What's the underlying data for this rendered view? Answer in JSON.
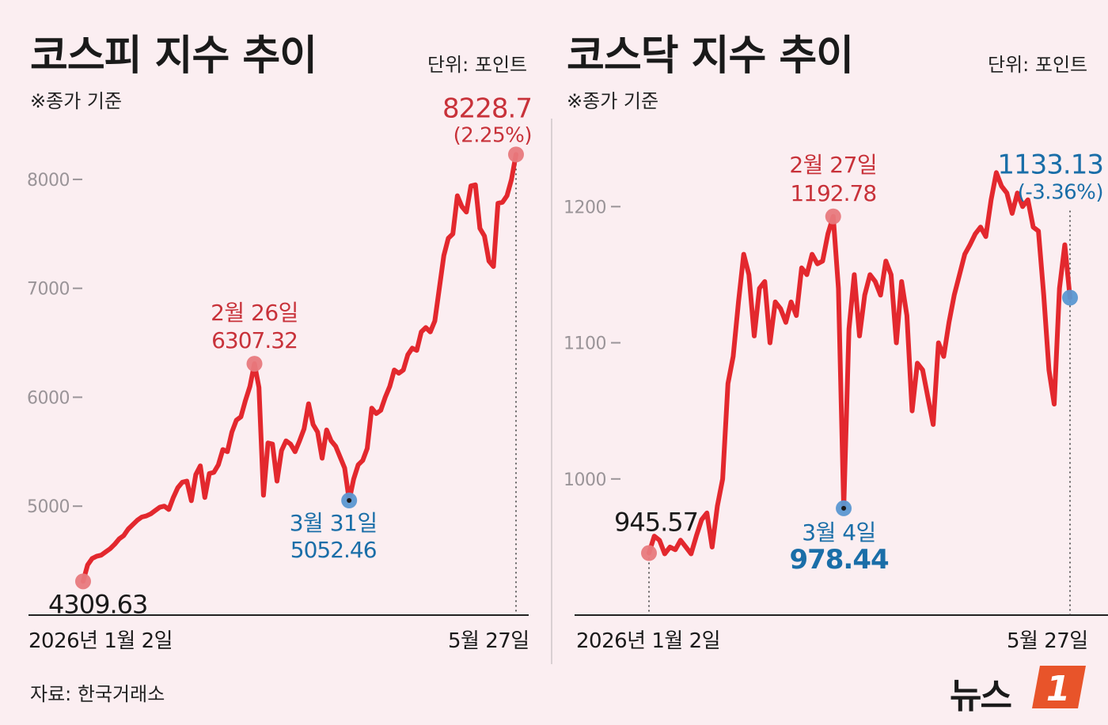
{
  "chart_data": [
    {
      "type": "line",
      "title": "코스피 지수 추이",
      "unit_label": "단위: 포인트",
      "note": "※종가 기준",
      "color": "#e3282e",
      "ylim": [
        4000,
        8500
      ],
      "yticks": [
        5000,
        6000,
        7000,
        8000
      ],
      "x_start_label": "2026년 1월 2일",
      "x_end_label": "5월 27일",
      "values": [
        4309.63,
        4460,
        4520,
        4540,
        4550,
        4580,
        4610,
        4650,
        4700,
        4730,
        4790,
        4830,
        4870,
        4900,
        4910,
        4930,
        4960,
        4990,
        5000,
        4970,
        5080,
        5170,
        5220,
        5230,
        5050,
        5290,
        5370,
        5080,
        5300,
        5310,
        5380,
        5520,
        5500,
        5680,
        5790,
        5820,
        5970,
        6100,
        6307.32,
        6090,
        5100,
        5580,
        5570,
        5230,
        5510,
        5600,
        5570,
        5500,
        5600,
        5710,
        5940,
        5750,
        5680,
        5440,
        5700,
        5600,
        5550,
        5450,
        5350,
        5052.46,
        5250,
        5380,
        5420,
        5530,
        5900,
        5850,
        5880,
        6000,
        6100,
        6250,
        6220,
        6250,
        6390,
        6450,
        6430,
        6600,
        6640,
        6600,
        6700,
        7000,
        7300,
        7460,
        7500,
        7850,
        7750,
        7700,
        7940,
        7950,
        7550,
        7480,
        7250,
        7200,
        7780,
        7790,
        7850,
        8000,
        8228.7
      ],
      "annotations": [
        {
          "label": "2월 26일",
          "value": "6307.32",
          "color": "#c8323a"
        },
        {
          "label": "3월 31일",
          "value": "5052.46",
          "color": "#1a6ea8"
        },
        {
          "label": "",
          "value": "4309.63",
          "color": "#1a1a1a"
        },
        {
          "label": "",
          "value": "8228.7",
          "sub": "(2.25%)",
          "color": "#c8323a"
        }
      ]
    },
    {
      "type": "line",
      "title": "코스닥 지수 추이",
      "unit_label": "단위: 포인트",
      "note": "※종가 기준",
      "color": "#e3282e",
      "ylim": [
        900,
        1260
      ],
      "yticks": [
        1000,
        1100,
        1200
      ],
      "x_start_label": "2026년 1월 2일",
      "x_end_label": "5월 27일",
      "values": [
        945.57,
        958,
        955,
        945,
        950,
        948,
        955,
        950,
        945,
        958,
        970,
        975,
        950,
        980,
        1000,
        1070,
        1090,
        1130,
        1165,
        1150,
        1105,
        1140,
        1145,
        1100,
        1130,
        1125,
        1115,
        1130,
        1120,
        1155,
        1150,
        1165,
        1158,
        1160,
        1180,
        1192.78,
        1140,
        978.44,
        1110,
        1150,
        1105,
        1135,
        1150,
        1145,
        1135,
        1160,
        1150,
        1100,
        1145,
        1120,
        1050,
        1085,
        1080,
        1060,
        1040,
        1100,
        1090,
        1115,
        1135,
        1150,
        1165,
        1172,
        1180,
        1185,
        1178,
        1205,
        1225,
        1215,
        1210,
        1195,
        1210,
        1200,
        1205,
        1185,
        1182,
        1135,
        1080,
        1055,
        1140,
        1172,
        1133.13
      ],
      "annotations": [
        {
          "label": "2월 27일",
          "value": "1192.78",
          "color": "#c8323a"
        },
        {
          "label": "3월 4일",
          "value": "978.44",
          "color": "#1a6ea8"
        },
        {
          "label": "",
          "value": "945.57",
          "color": "#1a1a1a"
        },
        {
          "label": "",
          "value": "1133.13",
          "sub": "(-3.36%)",
          "color": "#1a6ea8"
        }
      ]
    }
  ],
  "source": "자료: 한국거래소",
  "logo": {
    "text": "뉴스",
    "mark": "1"
  }
}
